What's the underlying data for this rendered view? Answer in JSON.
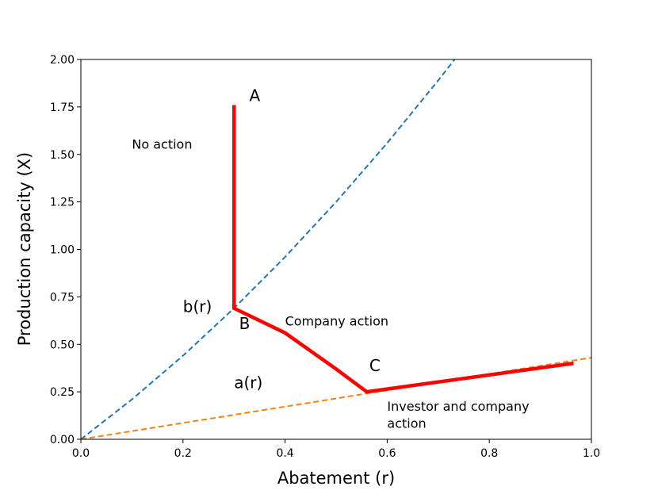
{
  "chart_data": {
    "type": "line",
    "xlabel": "Abatement (r)",
    "ylabel": "Production capacity (X)",
    "xlim": [
      0,
      1
    ],
    "ylim": [
      0,
      2
    ],
    "xticks": [
      {
        "value": 0,
        "label": "0.0"
      },
      0.2,
      0.4,
      0.6,
      0.8,
      {
        "value": 1,
        "label": "1.0"
      }
    ],
    "yticks": [
      {
        "value": 0,
        "label": "0.00"
      },
      0.25,
      {
        "value": 0.5,
        "label": "0.50"
      },
      0.75,
      {
        "value": 1,
        "label": "1.00"
      },
      1.25,
      {
        "value": 1.5,
        "label": "1.50"
      },
      1.75,
      {
        "value": 2,
        "label": "2.00"
      }
    ],
    "series": [
      {
        "color": "#1f77b4",
        "dashed": true,
        "x": [
          0,
          0.1,
          0.2,
          0.3,
          0.4,
          0.5,
          0.6,
          0.7,
          0.732
        ],
        "values": [
          0,
          0.21,
          0.44,
          0.69,
          0.96,
          1.25,
          1.56,
          1.89,
          2.0
        ]
      },
      {
        "color": "#ff7f0e",
        "dashed": true,
        "x": [
          0,
          1
        ],
        "values": [
          0,
          0.43
        ]
      },
      {
        "color": "#ff0000",
        "dashed": false,
        "x": [
          0.3,
          0.3,
          0.4,
          0.5,
          0.56,
          0.965
        ],
        "values": [
          1.76,
          0.69,
          0.56,
          0.37,
          0.25,
          0.4
        ]
      }
    ],
    "annotations": [
      {
        "text": [
          "A"
        ]
      },
      {
        "text": [
          "B"
        ]
      },
      {
        "text": [
          "C"
        ]
      },
      {
        "text": [
          "b(r)"
        ]
      },
      {
        "text": [
          "a(r)"
        ]
      },
      {
        "text": [
          "No action"
        ]
      },
      {
        "text": [
          "Company action"
        ]
      },
      {
        "text": [
          "Investor and company",
          "action"
        ]
      }
    ]
  }
}
